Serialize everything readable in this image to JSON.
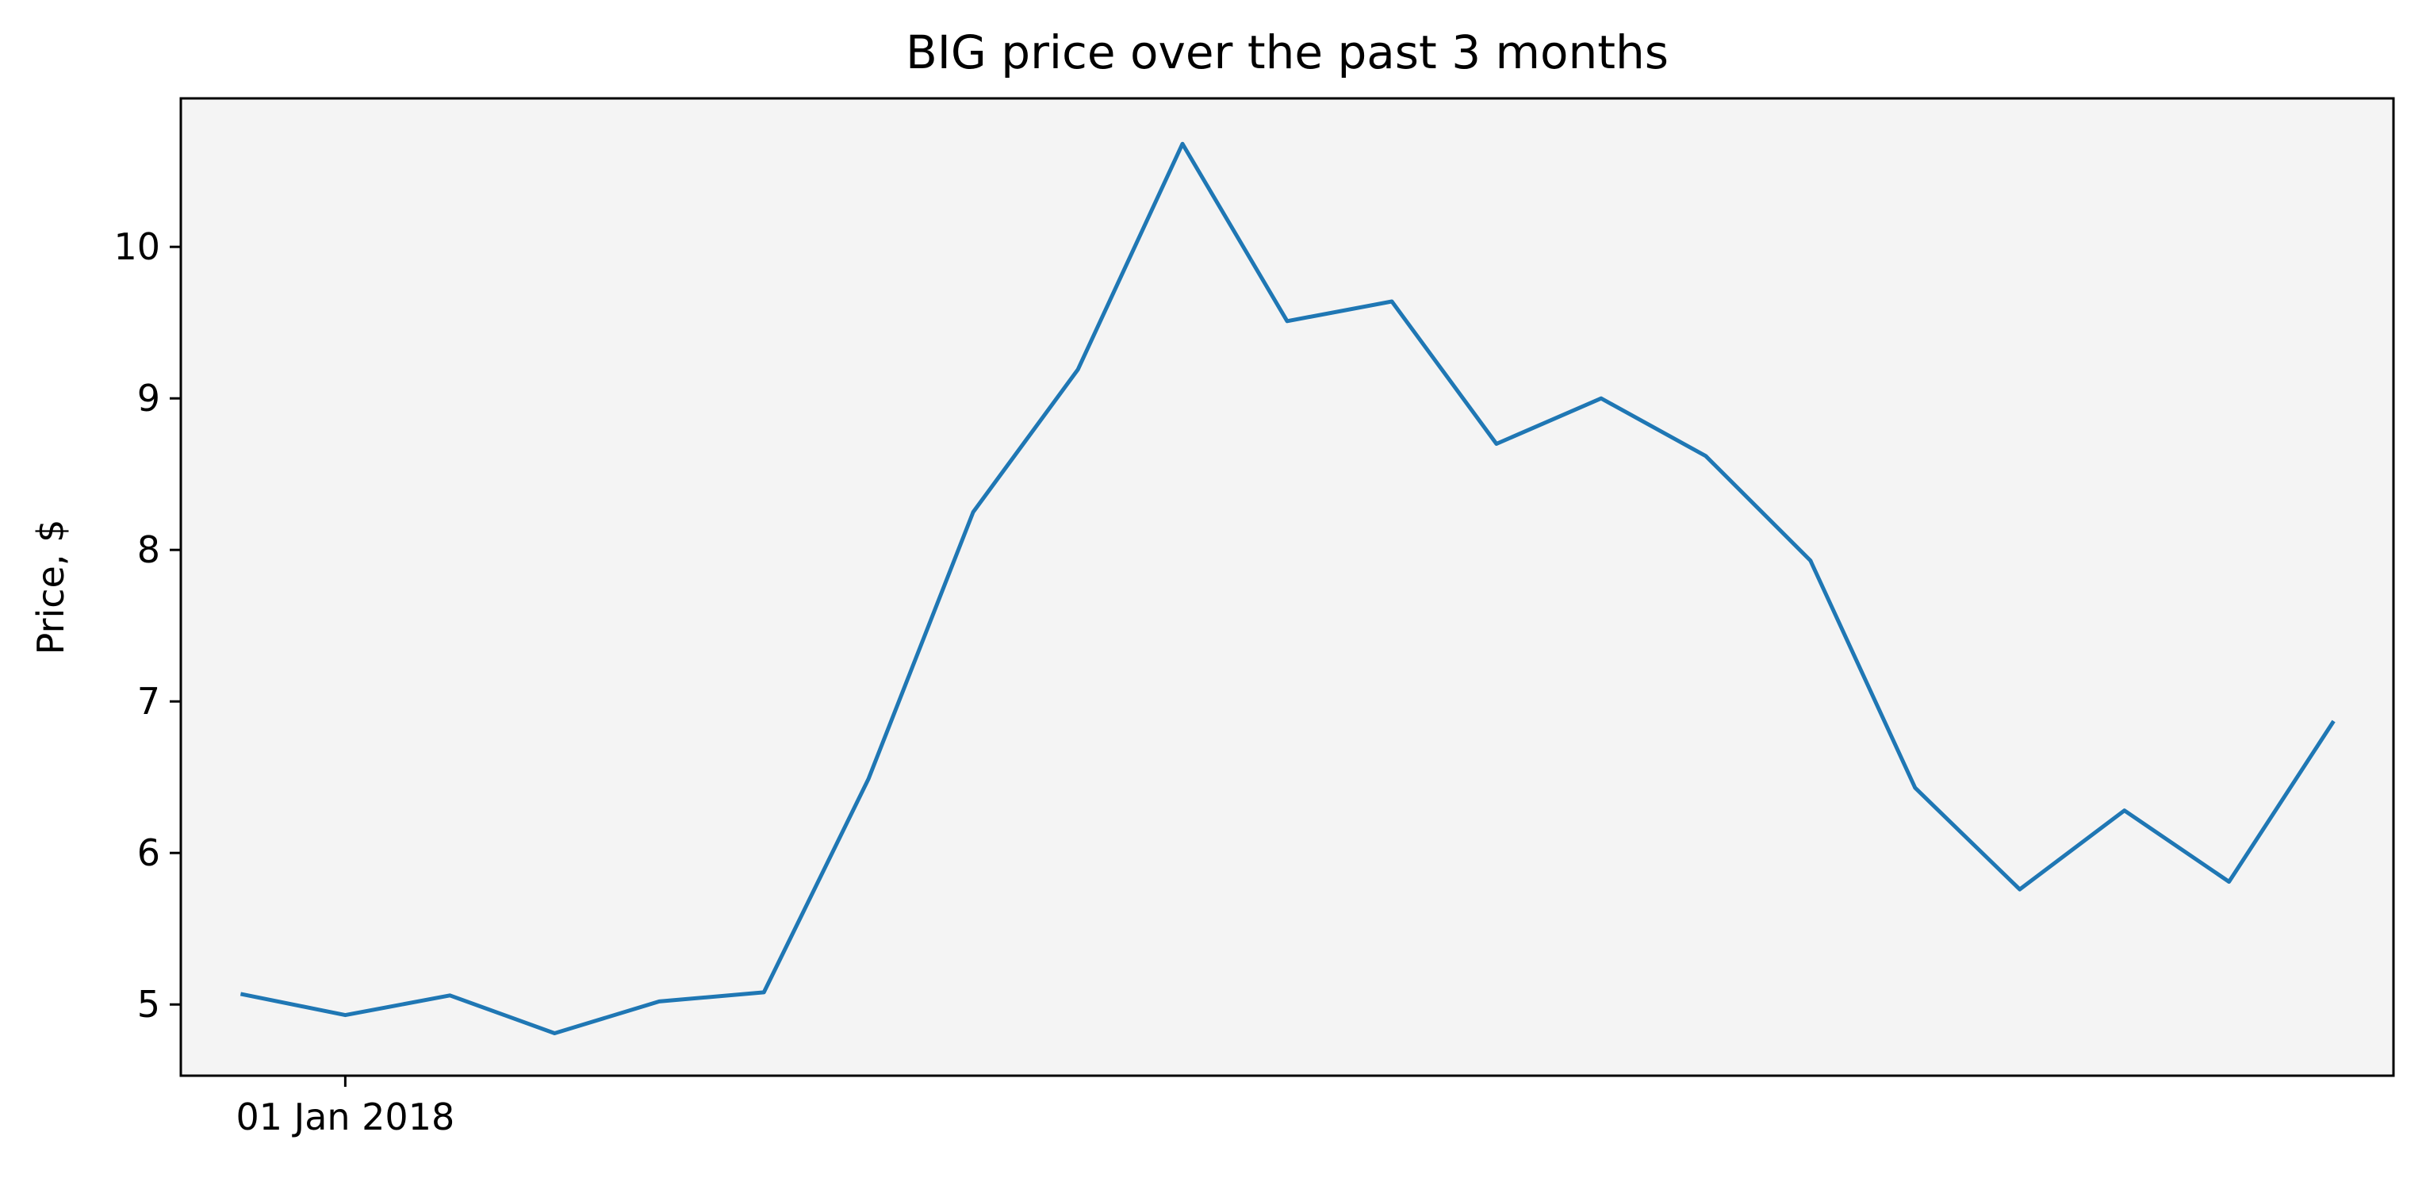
{
  "chart_data": {
    "type": "line",
    "title": "BIG price over the past 3 months",
    "xlabel": "",
    "ylabel": "Price, $",
    "x": [
      "2017-12-25",
      "2018-01-01",
      "2018-01-08",
      "2018-01-15",
      "2018-01-22",
      "2018-01-29",
      "2018-02-05",
      "2018-02-12",
      "2018-02-19",
      "2018-02-26",
      "2018-03-05",
      "2018-03-12",
      "2018-03-19",
      "2018-03-26",
      "2018-04-02",
      "2018-04-09",
      "2018-04-16",
      "2018-04-23",
      "2018-04-30",
      "2018-05-07",
      "2018-05-14"
    ],
    "series": [
      {
        "values": [
          5.07,
          4.93,
          5.06,
          4.81,
          5.02,
          5.08,
          6.49,
          8.25,
          9.19,
          10.68,
          9.51,
          9.64,
          8.7,
          9.0,
          8.62,
          7.93,
          6.43,
          5.76,
          6.28,
          5.81,
          6.87
        ]
      }
    ],
    "x_ticks": [
      {
        "value": "2018-01-01",
        "label": "01 Jan 2018"
      }
    ],
    "y_ticks": [
      5,
      6,
      7,
      8,
      9,
      10
    ],
    "ylim": [
      4.53,
      10.98
    ],
    "xlim": [
      "2017-12-21",
      "2018-05-18"
    ],
    "grid": false,
    "colors": {
      "line": "#1f77b4",
      "plot_background": "#f4f4f4",
      "frame": "#000000"
    }
  }
}
